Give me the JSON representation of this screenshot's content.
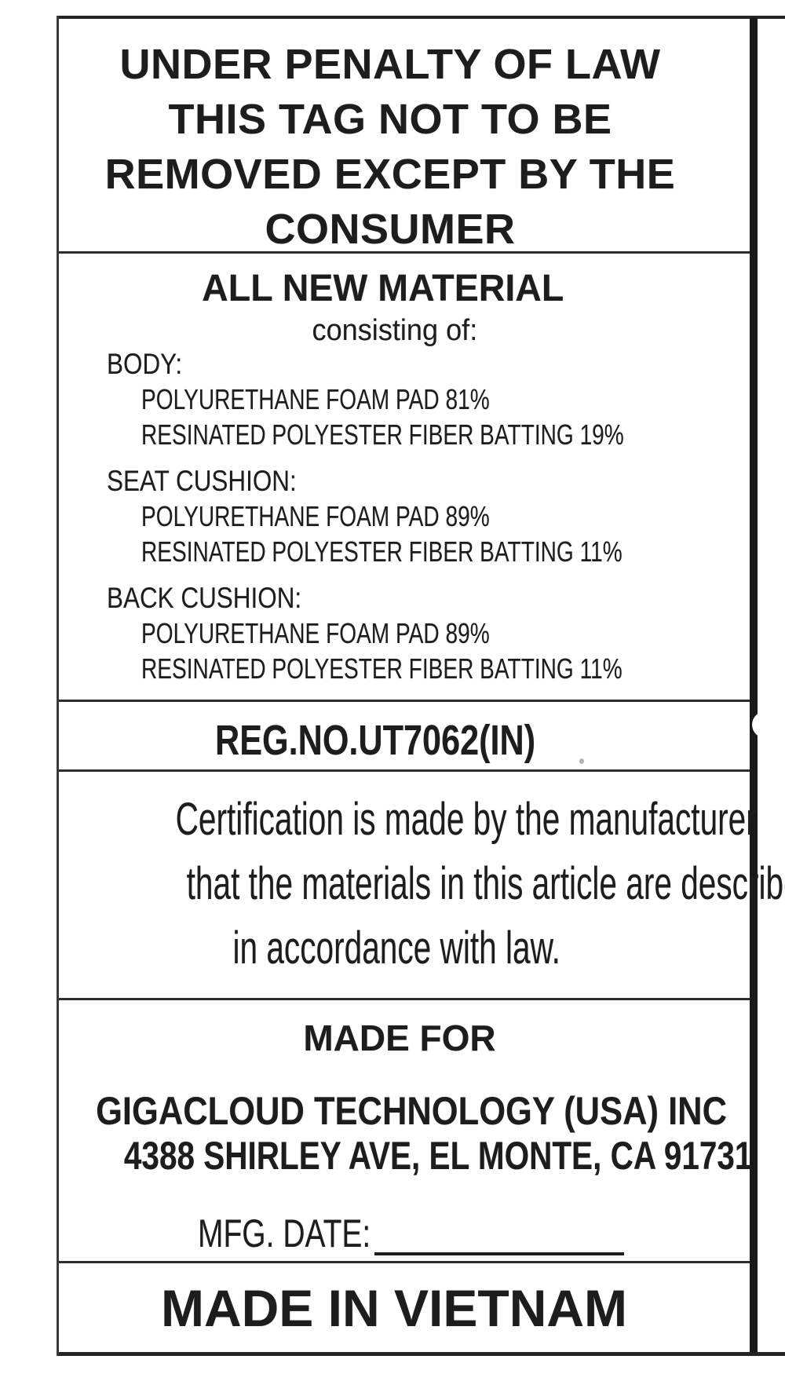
{
  "colors": {
    "ink": "#1d1d1e",
    "paper": "#ffffff"
  },
  "label": {
    "penalty_notice": {
      "lines": [
        "UNDER PENALTY OF LAW",
        "THIS TAG NOT TO BE",
        "REMOVED EXCEPT BY THE",
        "CONSUMER"
      ]
    },
    "materials": {
      "title": "ALL NEW MATERIAL",
      "subtitle": "consisting of:",
      "groups": [
        {
          "name": "BODY:",
          "items": [
            "POLYURETHANE FOAM PAD 81%",
            "RESINATED POLYESTER FIBER BATTING 19%"
          ]
        },
        {
          "name": "SEAT CUSHION:",
          "items": [
            "POLYURETHANE FOAM PAD 89%",
            "RESINATED POLYESTER FIBER BATTING 11%"
          ]
        },
        {
          "name": "BACK CUSHION:",
          "items": [
            "POLYURETHANE FOAM PAD 89%",
            "RESINATED POLYESTER FIBER BATTING 11%"
          ]
        }
      ]
    },
    "registration": {
      "reg_no": "REG.NO.UT7062(IN)"
    },
    "certification": {
      "lines": [
        "Certification is made by the manufacturer",
        "that the materials in this article are described",
        "in accordance with law."
      ]
    },
    "manufacturer": {
      "heading": "MADE FOR",
      "company": "GIGACLOUD TECHNOLOGY (USA) INC",
      "address": "4388 SHIRLEY AVE, EL MONTE, CA 91731",
      "mfg_date_label": "MFG. DATE:"
    },
    "origin": {
      "text": "MADE IN VIETNAM"
    }
  }
}
